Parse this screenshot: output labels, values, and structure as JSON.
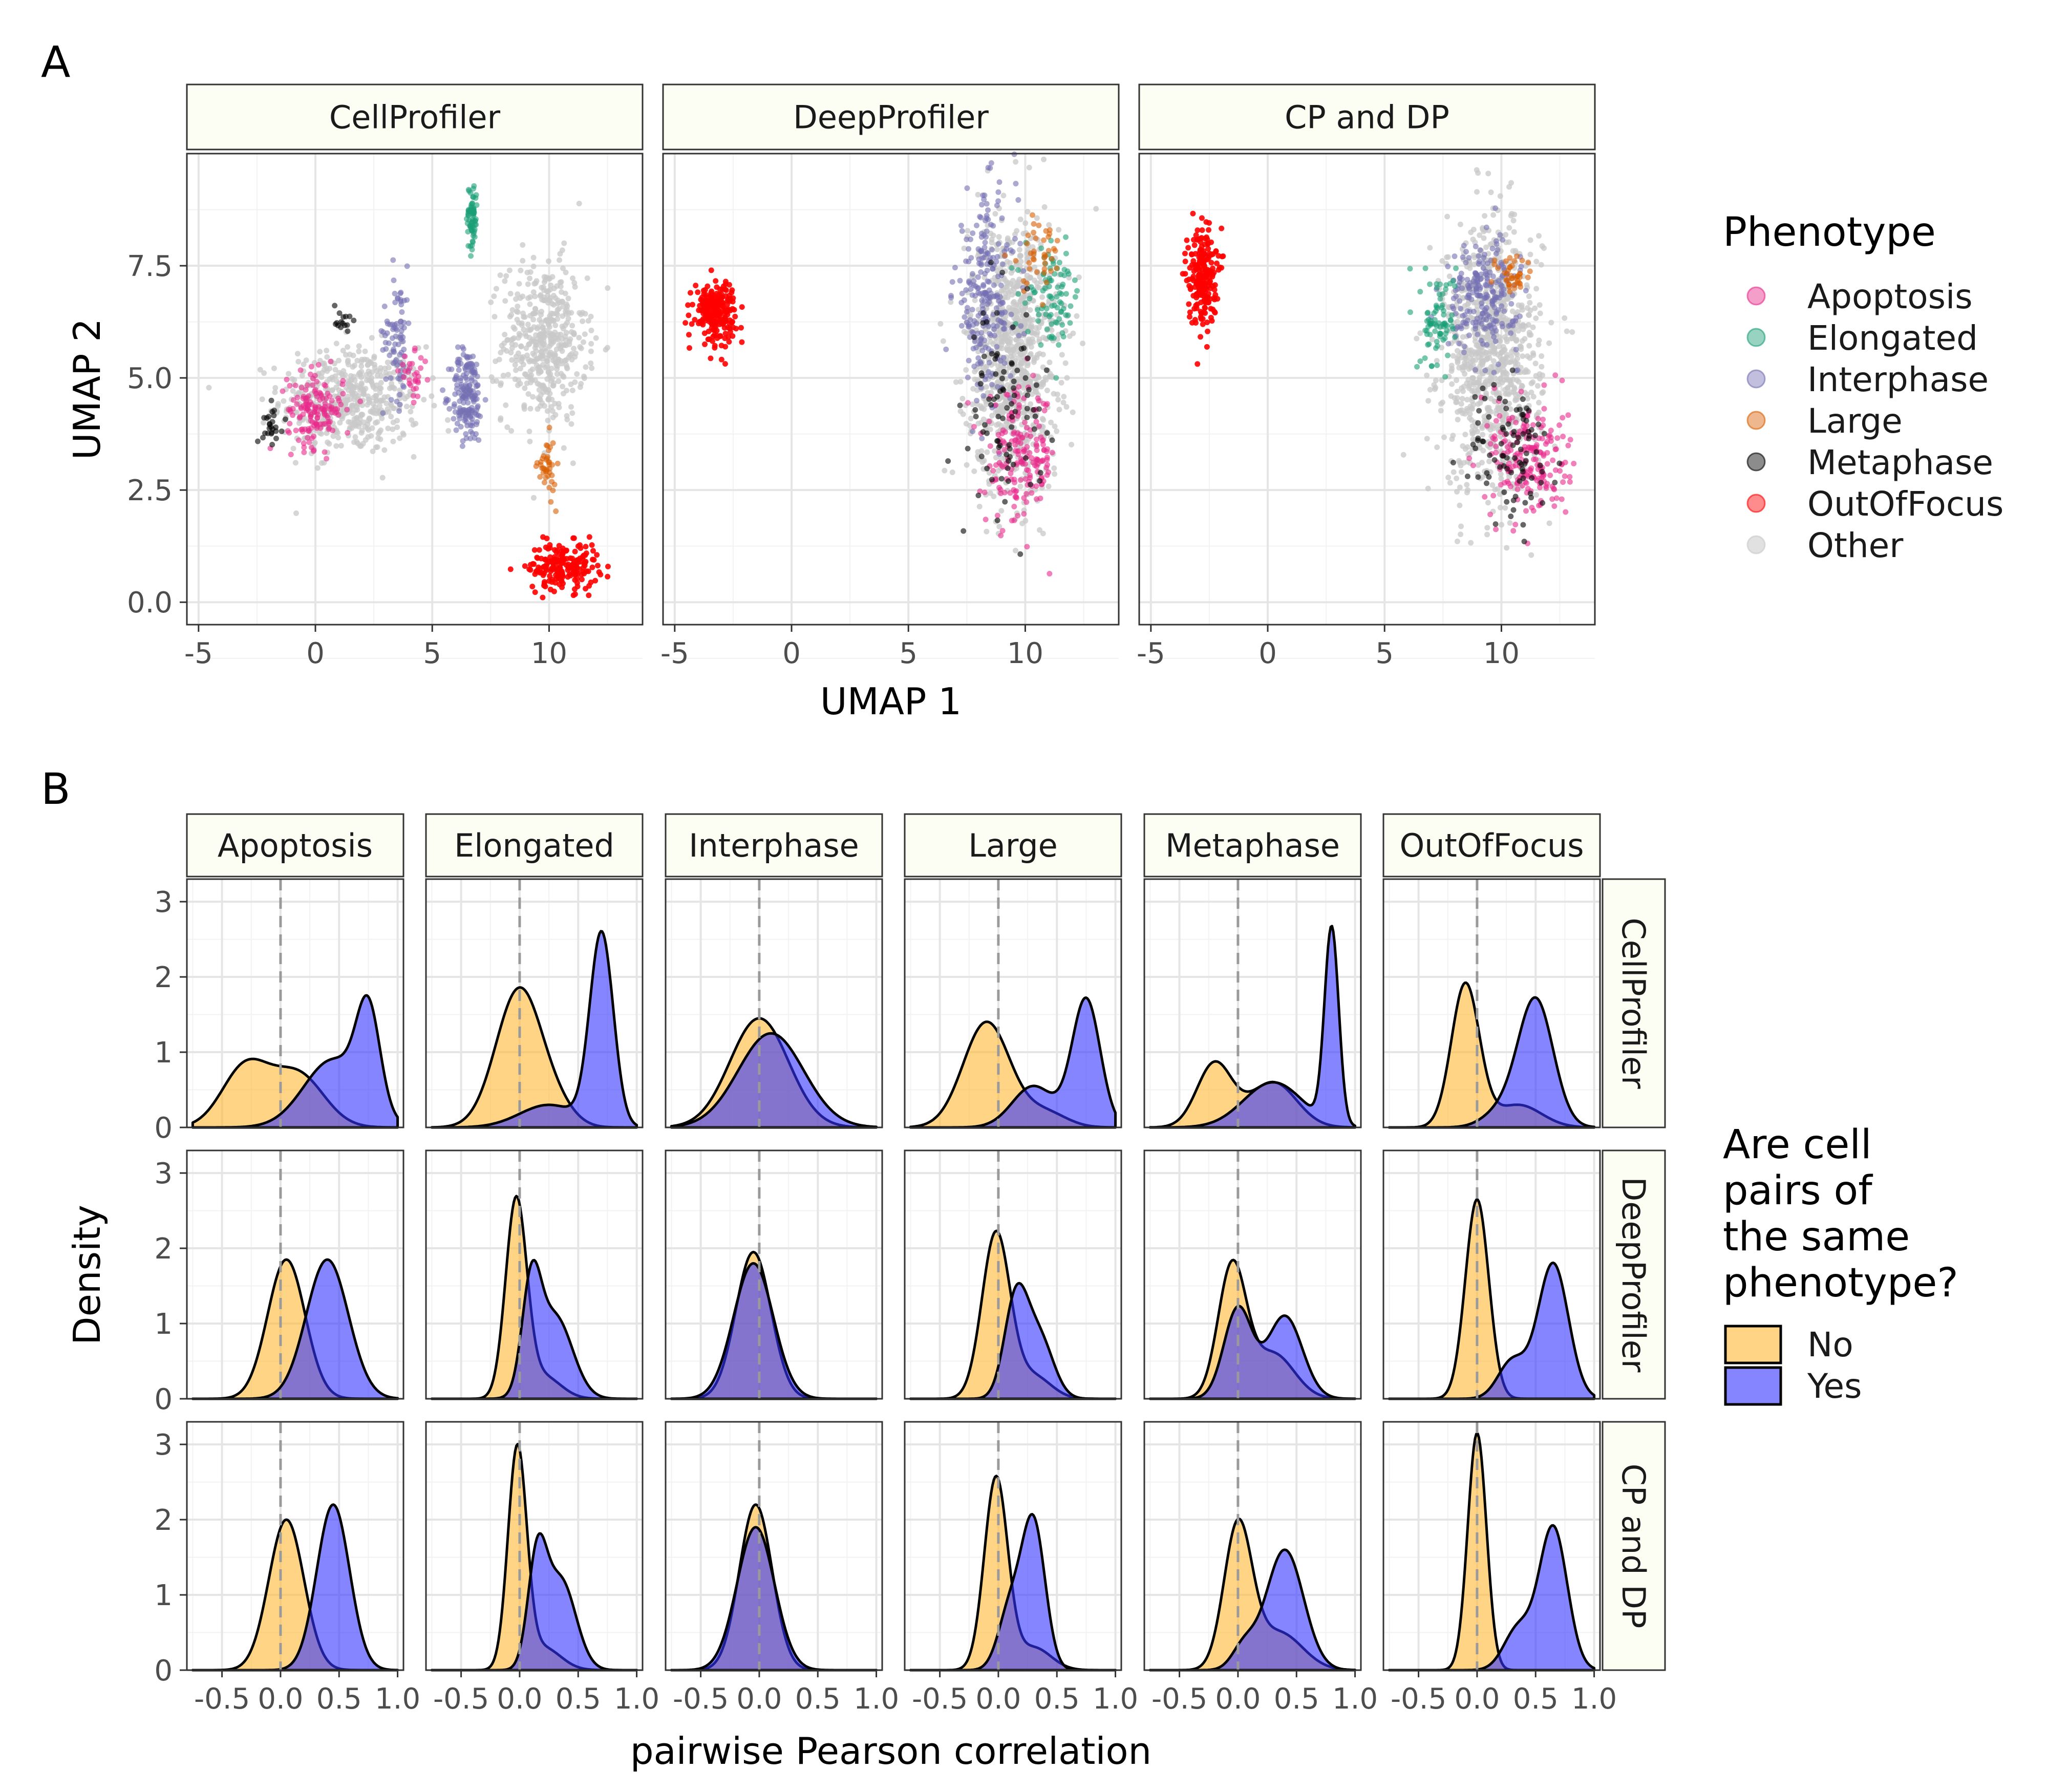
{
  "panel_labels": [
    "A",
    "B"
  ],
  "colors": {
    "Apoptosis": "#E7298A",
    "Elongated": "#1B9E77",
    "Interphase": "#7570B3",
    "Large": "#D95F02",
    "Metaphase": "#000000",
    "OutOfFocus": "#FF0000",
    "Other": "#C8C8C8",
    "No": "#FFB733",
    "Yes": "#3333FF",
    "strip_fill": "#FCFDF3"
  },
  "chart_data": [
    {
      "type": "scatter",
      "facets": [
        "CellProfiler",
        "DeepProfiler",
        "CP and DP"
      ],
      "xlabel": "UMAP 1",
      "ylabel": "UMAP 2",
      "xlim": [
        -5.5,
        14
      ],
      "ylim": [
        -0.5,
        10
      ],
      "x_ticks": [
        -5,
        0,
        5,
        10
      ],
      "x_tick_labels": [
        "-5",
        "0",
        "5",
        "10"
      ],
      "y_ticks": [
        0,
        2.5,
        5,
        7.5
      ],
      "y_tick_labels": [
        "0.0",
        "2.5",
        "5.0",
        "7.5"
      ],
      "legend": {
        "title": "Phenotype",
        "entries": [
          "Apoptosis",
          "Elongated",
          "Interphase",
          "Large",
          "Metaphase",
          "OutOfFocus",
          "Other"
        ],
        "placement": "right"
      },
      "clusters": {
        "CellProfiler": [
          {
            "phenotype": "Other",
            "cx": 1.5,
            "cy": 4.5,
            "sx": 2.0,
            "sy": 0.8,
            "n": 500
          },
          {
            "phenotype": "Other",
            "cx": 9.8,
            "cy": 5.8,
            "sx": 1.2,
            "sy": 1.2,
            "n": 460
          },
          {
            "phenotype": "Apoptosis",
            "cx": 0.0,
            "cy": 4.3,
            "sx": 0.8,
            "sy": 0.55,
            "n": 150
          },
          {
            "phenotype": "Apoptosis",
            "cx": 4.2,
            "cy": 5.0,
            "sx": 0.4,
            "sy": 0.35,
            "n": 30
          },
          {
            "phenotype": "Metaphase",
            "cx": -1.8,
            "cy": 4.0,
            "sx": 0.3,
            "sy": 0.3,
            "n": 25
          },
          {
            "phenotype": "Metaphase",
            "cx": 1.1,
            "cy": 6.3,
            "sx": 0.25,
            "sy": 0.3,
            "n": 15
          },
          {
            "phenotype": "Interphase",
            "cx": 6.5,
            "cy": 4.6,
            "sx": 0.45,
            "sy": 0.7,
            "n": 170
          },
          {
            "phenotype": "Interphase",
            "cx": 3.5,
            "cy": 6.0,
            "sx": 0.4,
            "sy": 1.0,
            "n": 80
          },
          {
            "phenotype": "Elongated",
            "cx": 6.7,
            "cy": 8.6,
            "sx": 0.15,
            "sy": 0.5,
            "n": 70
          },
          {
            "phenotype": "Large",
            "cx": 9.9,
            "cy": 3.0,
            "sx": 0.25,
            "sy": 0.45,
            "n": 40
          },
          {
            "phenotype": "OutOfFocus",
            "cx": 10.6,
            "cy": 0.8,
            "sx": 1.0,
            "sy": 0.35,
            "n": 200
          }
        ],
        "DeepProfiler": [
          {
            "phenotype": "OutOfFocus",
            "cx": -3.3,
            "cy": 6.5,
            "sx": 0.6,
            "sy": 0.45,
            "n": 220
          },
          {
            "phenotype": "Other",
            "cx": 9.5,
            "cy": 5.5,
            "sx": 1.3,
            "sy": 2.0,
            "n": 900
          },
          {
            "phenotype": "Interphase",
            "cx": 8.3,
            "cy": 6.8,
            "sx": 0.9,
            "sy": 1.5,
            "n": 240
          },
          {
            "phenotype": "Apoptosis",
            "cx": 9.8,
            "cy": 3.2,
            "sx": 1.0,
            "sy": 1.0,
            "n": 180
          },
          {
            "phenotype": "Metaphase",
            "cx": 9.2,
            "cy": 4.2,
            "sx": 1.0,
            "sy": 1.5,
            "n": 90
          },
          {
            "phenotype": "Elongated",
            "cx": 11.2,
            "cy": 6.8,
            "sx": 0.8,
            "sy": 0.7,
            "n": 90
          },
          {
            "phenotype": "Large",
            "cx": 10.5,
            "cy": 7.8,
            "sx": 0.8,
            "sy": 0.6,
            "n": 40
          }
        ],
        "CP and DP": [
          {
            "phenotype": "OutOfFocus",
            "cx": -2.8,
            "cy": 7.3,
            "sx": 0.4,
            "sy": 0.75,
            "n": 220
          },
          {
            "phenotype": "Other",
            "cx": 9.6,
            "cy": 5.5,
            "sx": 1.4,
            "sy": 2.0,
            "n": 900
          },
          {
            "phenotype": "Interphase",
            "cx": 9.2,
            "cy": 6.8,
            "sx": 1.0,
            "sy": 0.8,
            "n": 220
          },
          {
            "phenotype": "Apoptosis",
            "cx": 11.2,
            "cy": 3.2,
            "sx": 1.1,
            "sy": 0.9,
            "n": 200
          },
          {
            "phenotype": "Metaphase",
            "cx": 10.5,
            "cy": 3.3,
            "sx": 1.2,
            "sy": 1.1,
            "n": 90
          },
          {
            "phenotype": "Elongated",
            "cx": 7.3,
            "cy": 6.3,
            "sx": 0.5,
            "sy": 0.7,
            "n": 80
          },
          {
            "phenotype": "Large",
            "cx": 10.6,
            "cy": 7.3,
            "sx": 0.5,
            "sy": 0.4,
            "n": 40
          }
        ]
      }
    },
    {
      "type": "area",
      "subtype": "density",
      "col_facets": [
        "Apoptosis",
        "Elongated",
        "Interphase",
        "Large",
        "Metaphase",
        "OutOfFocus"
      ],
      "row_facets": [
        "CellProfiler",
        "DeepProfiler",
        "CP and DP"
      ],
      "xlabel": "pairwise Pearson correlation",
      "ylabel": "Density",
      "xlim": [
        -0.8,
        1.05
      ],
      "ylim": [
        0,
        3.3
      ],
      "x_ticks": [
        -0.5,
        0.0,
        0.5,
        1.0
      ],
      "x_tick_labels": [
        "-0.5",
        "0.0",
        "0.5",
        "1.0"
      ],
      "y_ticks": [
        0,
        1,
        2,
        3
      ],
      "y_tick_labels": [
        "0",
        "1",
        "2",
        "3"
      ],
      "reference_line_x": 0,
      "legend": {
        "title_lines": [
          "Are cell",
          "pairs of",
          "the same",
          "phenotype?"
        ],
        "entries": [
          "No",
          "Yes"
        ],
        "placement": "right"
      },
      "densities": [
        {
          "row": "CellProfiler",
          "col": "Apoptosis",
          "No": [
            [
              -0.3,
              0.2,
              0.8
            ],
            [
              0.15,
              0.22,
              0.7
            ]
          ],
          "Yes": [
            [
              0.75,
              0.1,
              1.3
            ],
            [
              0.45,
              0.25,
              0.9
            ]
          ]
        },
        {
          "row": "CellProfiler",
          "col": "Elongated",
          "No": [
            [
              0.0,
              0.2,
              1.85
            ],
            [
              0.35,
              0.15,
              0.15
            ]
          ],
          "Yes": [
            [
              0.7,
              0.1,
              2.55
            ],
            [
              0.25,
              0.25,
              0.3
            ]
          ]
        },
        {
          "row": "CellProfiler",
          "col": "Interphase",
          "No": [
            [
              0.0,
              0.25,
              1.45
            ]
          ],
          "Yes": [
            [
              0.1,
              0.28,
              1.25
            ]
          ]
        },
        {
          "row": "CellProfiler",
          "col": "Large",
          "No": [
            [
              -0.1,
              0.2,
              1.4
            ],
            [
              0.4,
              0.18,
              0.2
            ]
          ],
          "Yes": [
            [
              0.75,
              0.12,
              1.7
            ],
            [
              0.3,
              0.18,
              0.55
            ]
          ]
        },
        {
          "row": "CellProfiler",
          "col": "Metaphase",
          "No": [
            [
              -0.2,
              0.15,
              0.85
            ],
            [
              0.3,
              0.2,
              0.6
            ]
          ],
          "Yes": [
            [
              0.8,
              0.06,
              2.6
            ],
            [
              0.3,
              0.25,
              0.6
            ]
          ]
        },
        {
          "row": "CellProfiler",
          "col": "OutOfFocus",
          "No": [
            [
              -0.1,
              0.12,
              1.9
            ],
            [
              0.35,
              0.2,
              0.3
            ]
          ],
          "Yes": [
            [
              0.5,
              0.15,
              1.7
            ],
            [
              0.2,
              0.15,
              0.2
            ]
          ]
        },
        {
          "row": "DeepProfiler",
          "col": "Apoptosis",
          "No": [
            [
              0.05,
              0.16,
              1.85
            ]
          ],
          "Yes": [
            [
              0.4,
              0.18,
              1.85
            ]
          ]
        },
        {
          "row": "DeepProfiler",
          "col": "Elongated",
          "No": [
            [
              -0.03,
              0.09,
              2.6
            ],
            [
              0.2,
              0.15,
              0.3
            ]
          ],
          "Yes": [
            [
              0.1,
              0.08,
              1.35
            ],
            [
              0.3,
              0.15,
              1.1
            ]
          ]
        },
        {
          "row": "DeepProfiler",
          "col": "Interphase",
          "No": [
            [
              -0.05,
              0.15,
              1.95
            ]
          ],
          "Yes": [
            [
              -0.05,
              0.17,
              1.8
            ]
          ]
        },
        {
          "row": "DeepProfiler",
          "col": "Large",
          "No": [
            [
              -0.02,
              0.12,
              2.2
            ],
            [
              0.3,
              0.15,
              0.3
            ]
          ],
          "Yes": [
            [
              0.15,
              0.1,
              1.3
            ],
            [
              0.35,
              0.12,
              0.8
            ]
          ]
        },
        {
          "row": "DeepProfiler",
          "col": "Metaphase",
          "No": [
            [
              -0.05,
              0.12,
              1.75
            ],
            [
              0.3,
              0.18,
              0.6
            ]
          ],
          "Yes": [
            [
              0.0,
              0.12,
              1.2
            ],
            [
              0.4,
              0.15,
              1.1
            ]
          ]
        },
        {
          "row": "DeepProfiler",
          "col": "OutOfFocus",
          "No": [
            [
              0.0,
              0.1,
              2.65
            ]
          ],
          "Yes": [
            [
              0.65,
              0.13,
              1.8
            ],
            [
              0.3,
              0.12,
              0.5
            ]
          ]
        },
        {
          "row": "CP and DP",
          "col": "Apoptosis",
          "No": [
            [
              0.05,
              0.15,
              2.0
            ]
          ],
          "Yes": [
            [
              0.45,
              0.14,
              2.2
            ]
          ]
        },
        {
          "row": "CP and DP",
          "col": "Elongated",
          "No": [
            [
              -0.02,
              0.08,
              2.9
            ],
            [
              0.2,
              0.15,
              0.3
            ]
          ],
          "Yes": [
            [
              0.15,
              0.08,
              1.4
            ],
            [
              0.35,
              0.13,
              1.2
            ]
          ]
        },
        {
          "row": "CP and DP",
          "col": "Interphase",
          "No": [
            [
              -0.03,
              0.14,
              2.2
            ]
          ],
          "Yes": [
            [
              -0.03,
              0.16,
              1.9
            ]
          ]
        },
        {
          "row": "CP and DP",
          "col": "Large",
          "No": [
            [
              -0.02,
              0.1,
              2.55
            ],
            [
              0.3,
              0.15,
              0.3
            ]
          ],
          "Yes": [
            [
              0.3,
              0.1,
              1.95
            ],
            [
              0.1,
              0.1,
              0.8
            ]
          ]
        },
        {
          "row": "CP and DP",
          "col": "Metaphase",
          "No": [
            [
              0.0,
              0.12,
              1.9
            ],
            [
              0.35,
              0.2,
              0.5
            ]
          ],
          "Yes": [
            [
              0.4,
              0.16,
              1.6
            ],
            [
              0.05,
              0.1,
              0.3
            ]
          ]
        },
        {
          "row": "CP and DP",
          "col": "OutOfFocus",
          "No": [
            [
              0.0,
              0.08,
              3.15
            ]
          ],
          "Yes": [
            [
              0.65,
              0.12,
              1.9
            ],
            [
              0.35,
              0.12,
              0.55
            ]
          ]
        }
      ]
    }
  ]
}
